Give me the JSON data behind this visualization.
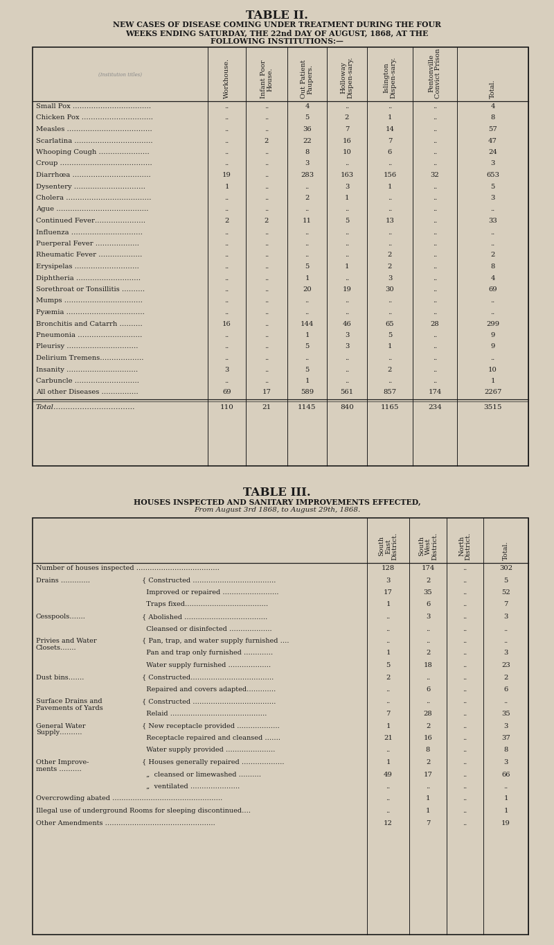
{
  "bg_color": "#d8cfbe",
  "text_color": "#1a1a1a",
  "title2": "TABLE II.",
  "subtitle2_line1": "NEW CASES OF DISEASE COMING UNDER TREATMENT DURING THE FOUR",
  "subtitle2_line2": "WEEKS ENDING SATURDAY, THE 22nd DAY OF AUGUST, 1868, AT THE",
  "subtitle2_line3": "FOLLOWING INSTITUTIONS:—",
  "table2_headers": [
    "Workhouse.",
    "Infant Poor\nHouse.",
    "Out Patient\nPaupers.",
    "Holloway\nDispen­sary.",
    "Islington\nDispen­sary.",
    "Pentonville\nConvict Prison",
    "Total."
  ],
  "table2_rows": [
    [
      "Small Pox …………………………….",
      "..",
      "..",
      "4",
      "..",
      "..",
      "..",
      "4"
    ],
    [
      "Chicken Pox ………………………….",
      "..",
      "..",
      "5",
      "2",
      "1",
      "..",
      "8"
    ],
    [
      "Measles ……………………………….",
      "..",
      "..",
      "36",
      "7",
      "14",
      "..",
      "57"
    ],
    [
      "Scarlatina …………………………….",
      "..",
      "2",
      "22",
      "16",
      "7",
      "..",
      "47"
    ],
    [
      "Whooping Cough ………………….",
      "..",
      "..",
      "8",
      "10",
      "6",
      "..",
      "24"
    ],
    [
      "Croup ………………………………….",
      "..",
      "..",
      "3",
      "..",
      "..",
      "..",
      "3"
    ],
    [
      "Diarrhœa …………………………….",
      "19",
      "..",
      "283",
      "163",
      "156",
      "32",
      "653"
    ],
    [
      "Dysentery ………………………….",
      "1",
      "..",
      "..",
      "3",
      "1",
      "..",
      "5"
    ],
    [
      "Cholera ……………………………….",
      "..",
      "..",
      "2",
      "1",
      "..",
      "..",
      "3"
    ],
    [
      "Ague ………………………………….",
      "..",
      "..",
      "..",
      "..",
      "..",
      "..",
      ".."
    ],
    [
      "Continued Fever………………….",
      "2",
      "2",
      "11",
      "5",
      "13",
      "..",
      "33"
    ],
    [
      "Influenza ………………………….",
      "..",
      "..",
      "..",
      "..",
      "..",
      "..",
      ".."
    ],
    [
      "Puerperal Fever ……………….",
      "..",
      "..",
      "..",
      "..",
      "..",
      "..",
      ".."
    ],
    [
      "Rheumatic Fever ……………….",
      "..",
      "..",
      "..",
      "..",
      "2",
      "..",
      "2"
    ],
    [
      "Erysipelas ……………………….",
      "..",
      "..",
      "5",
      "1",
      "2",
      "..",
      "8"
    ],
    [
      "Diphtheria ……………………….",
      "..",
      "..",
      "1",
      "..",
      "3",
      "..",
      "4"
    ],
    [
      "Sorethroat or Tonsillitis ……….",
      "..",
      "..",
      "20",
      "19",
      "30",
      "..",
      "69"
    ],
    [
      "Mumps …………………………….",
      "..",
      "..",
      "..",
      "..",
      "..",
      "..",
      ".."
    ],
    [
      "Pyæmia …………………………….",
      "..",
      "..",
      "..",
      "..",
      "..",
      "..",
      ".."
    ],
    [
      "Bronchitis and Catarrh ……….",
      "16",
      "..",
      "144",
      "46",
      "65",
      "28",
      "299"
    ],
    [
      "Pneumonia ……………………….",
      "..",
      "..",
      "1",
      "3",
      "5",
      "..",
      "9"
    ],
    [
      "Pleurisy ………………………….",
      "..",
      "..",
      "5",
      "3",
      "1",
      "..",
      "9"
    ],
    [
      "Delirium Tremens……………….",
      "..",
      "..",
      "..",
      "..",
      "..",
      "..",
      ".."
    ],
    [
      "Insanity ………………………….",
      "3",
      "..",
      "5",
      "..",
      "2",
      "..",
      "10"
    ],
    [
      "Carbuncle ……………………….",
      "..",
      "..",
      "1",
      "..",
      "..",
      "..",
      "1"
    ],
    [
      "All other Diseases …………….",
      "69",
      "17",
      "589",
      "561",
      "857",
      "174",
      "2267"
    ]
  ],
  "table2_total_label": "Total…………………………….",
  "table2_total_vals": [
    "110",
    "21",
    "1145",
    "840",
    "1165",
    "234",
    "3515"
  ],
  "title3": "TABLE III.",
  "subtitle3_line1": "HOUSES INSPECTED AND SANITARY IMPROVEMENTS EFFECTED,",
  "subtitle3_line2": "From August 3rd 1868, to August 29th, 1868.",
  "table3_headers": [
    "South\nEast\nDistrict.",
    "South\nWest\nDistrict.",
    "North\nDistrict.",
    "Total."
  ],
  "t3_rows": [
    {
      "label": "Number of houses inspected ……………………………….",
      "sub": null,
      "vals": [
        "128",
        "174",
        "..",
        "302"
      ]
    },
    {
      "label": "Drains ………….",
      "sub": "{ Constructed ……………………………….",
      "vals": [
        "3",
        "2",
        "..",
        "5"
      ]
    },
    {
      "label": "",
      "sub": "  Improved or repaired …………………….",
      "vals": [
        "17",
        "35",
        "..",
        "52"
      ]
    },
    {
      "label": "",
      "sub": "  Traps fixed……………………………….",
      "vals": [
        "1",
        "6",
        "..",
        "7"
      ]
    },
    {
      "label": "Cesspools…….",
      "sub": "{ Abolished ……………………………….",
      "vals": [
        "..",
        "3",
        "..",
        "3"
      ]
    },
    {
      "label": "",
      "sub": "  Cleansed or disinfected ……………….",
      "vals": [
        "..",
        "..",
        "..",
        ".."
      ]
    },
    {
      "label": "Privies and Water\nClosets…….",
      "sub": "{ Pan, trap, and water supply furnished ….",
      "vals": [
        "..",
        "..",
        "..",
        ".."
      ]
    },
    {
      "label": "",
      "sub": "  Pan and trap only furnished ………….",
      "vals": [
        "1",
        "2",
        "..",
        "3"
      ]
    },
    {
      "label": "",
      "sub": "  Water supply furnished ……………….",
      "vals": [
        "5",
        "18",
        "..",
        "23"
      ]
    },
    {
      "label": "Dust bins…….",
      "sub": "{ Constructed……………………………….",
      "vals": [
        "2",
        "..",
        "..",
        "2"
      ]
    },
    {
      "label": "",
      "sub": "  Repaired and covers adapted………….",
      "vals": [
        "..",
        "6",
        "..",
        "6"
      ]
    },
    {
      "label": "Surface Drains and\nPavements of Yards",
      "sub": "{ Constructed ……………………………….",
      "vals": [
        "..",
        "..",
        "..",
        ".."
      ]
    },
    {
      "label": "",
      "sub": "  Relaid …………………………………….",
      "vals": [
        "7",
        "28",
        "..",
        "35"
      ]
    },
    {
      "label": "General Water\nSupply……….",
      "sub": "{ New receptacle provided ……………….",
      "vals": [
        "1",
        "2",
        "..",
        "3"
      ]
    },
    {
      "label": "",
      "sub": "  Receptacle repaired and cleansed …….",
      "vals": [
        "21",
        "16",
        "..",
        "37"
      ]
    },
    {
      "label": "",
      "sub": "  Water supply provided ………………….",
      "vals": [
        "..",
        "8",
        "..",
        "8"
      ]
    },
    {
      "label": "Other Improve-\nments ……….",
      "sub": "{ Houses generally repaired ……………….",
      "vals": [
        "1",
        "2",
        "..",
        "3"
      ]
    },
    {
      "label": "",
      "sub": "  „  cleansed or limewashed ……….",
      "vals": [
        "49",
        "17",
        "..",
        "66"
      ]
    },
    {
      "label": "",
      "sub": "  „  ventilated ………………….",
      "vals": [
        "..",
        "..",
        "..",
        ".."
      ]
    },
    {
      "label": "Overcrowding abated ………………………………………….",
      "sub": null,
      "vals": [
        "..",
        "1",
        "..",
        "1"
      ]
    },
    {
      "label": "Illegal use of underground Rooms for sleeping discontinued….",
      "sub": null,
      "vals": [
        "..",
        "1",
        "..",
        "1"
      ]
    },
    {
      "label": "Other Amendments ………………………………………….",
      "sub": null,
      "vals": [
        "12",
        "7",
        "..",
        "19"
      ]
    }
  ]
}
